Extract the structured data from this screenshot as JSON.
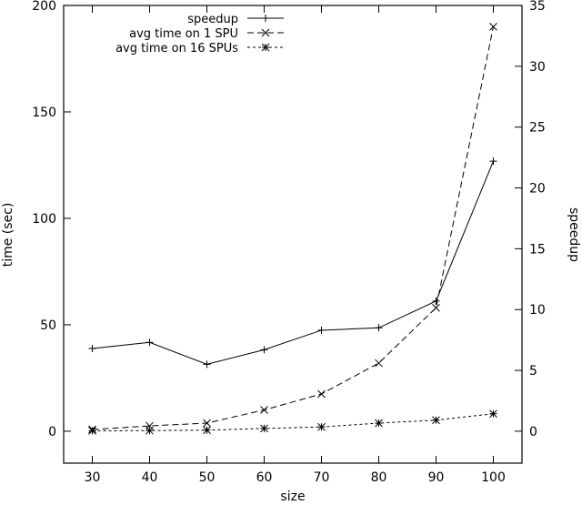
{
  "chart_data": {
    "type": "line",
    "title": "",
    "xlabel": "size",
    "ylabel": "time (sec)",
    "y2label": "speedup",
    "xlim": [
      25,
      105
    ],
    "ylim": [
      -15,
      200
    ],
    "y2lim": [
      -2.625,
      35
    ],
    "x_ticks": [
      30,
      40,
      50,
      60,
      70,
      80,
      90,
      100
    ],
    "y_ticks": [
      0,
      50,
      100,
      150,
      200
    ],
    "y2_ticks": [
      0,
      5,
      10,
      15,
      20,
      25,
      30,
      35
    ],
    "grid": false,
    "legend_position": "top-center",
    "x": [
      30,
      40,
      50,
      60,
      70,
      80,
      90,
      100
    ],
    "series": [
      {
        "name": "speedup",
        "axis": "right",
        "marker": "plus",
        "dash": "solid",
        "values": [
          6.8,
          7.3,
          5.5,
          6.7,
          8.3,
          8.5,
          10.7,
          22.2
        ]
      },
      {
        "name": "avg time on 1 SPU",
        "axis": "left",
        "marker": "cross",
        "dash": "long-dash",
        "values": [
          0.8,
          2.5,
          3.8,
          10,
          17.5,
          32,
          58,
          190
        ]
      },
      {
        "name": "avg time on 16 SPUs",
        "axis": "left",
        "marker": "star",
        "dash": "short-dash",
        "values": [
          0.2,
          0.3,
          0.5,
          1.3,
          2,
          3.8,
          5.2,
          8.2
        ]
      }
    ]
  }
}
